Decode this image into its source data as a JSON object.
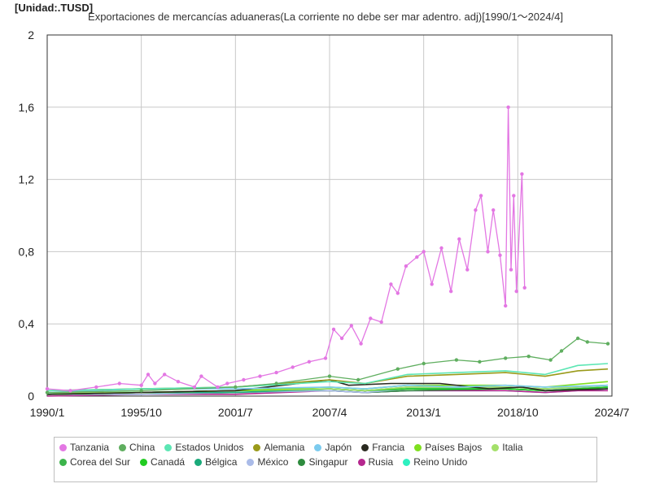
{
  "unit_label": "[Unidad:.TUSD]",
  "chart_data": {
    "type": "line",
    "title": "Exportaciones de mercancías aduaneras(La corriente no debe ser mar adentro. adj)[1990/1～2024/4]",
    "xlabel": "",
    "ylabel": "",
    "ylim": [
      0,
      2
    ],
    "xlim": [
      "1990-01",
      "2024-07"
    ],
    "y_ticks": [
      "0",
      "0,4",
      "0,8",
      "1,2",
      "1,6",
      "2"
    ],
    "y_tick_values": [
      0,
      0.4,
      0.8,
      1.2,
      1.6,
      2
    ],
    "x_ticks": [
      "1990/1",
      "1995/10",
      "2001/7",
      "2007/4",
      "2013/1",
      "2018/10",
      "2024/7"
    ],
    "grid": true,
    "legend_position": "bottom",
    "series": [
      {
        "name": "Tanzania",
        "color": "#e377e3",
        "markers": true,
        "points": [
          [
            "1990-01",
            0.04
          ],
          [
            "1991-06",
            0.03
          ],
          [
            "1993-01",
            0.05
          ],
          [
            "1994-06",
            0.07
          ],
          [
            "1995-10",
            0.06
          ],
          [
            "1996-03",
            0.12
          ],
          [
            "1996-08",
            0.07
          ],
          [
            "1997-03",
            0.12
          ],
          [
            "1998-01",
            0.08
          ],
          [
            "1999-01",
            0.05
          ],
          [
            "1999-06",
            0.11
          ],
          [
            "2000-06",
            0.05
          ],
          [
            "2001-01",
            0.07
          ],
          [
            "2002-01",
            0.09
          ],
          [
            "2003-01",
            0.11
          ],
          [
            "2004-01",
            0.13
          ],
          [
            "2005-01",
            0.16
          ],
          [
            "2006-01",
            0.19
          ],
          [
            "2007-01",
            0.21
          ],
          [
            "2007-07",
            0.37
          ],
          [
            "2008-01",
            0.32
          ],
          [
            "2008-08",
            0.39
          ],
          [
            "2009-03",
            0.29
          ],
          [
            "2009-10",
            0.43
          ],
          [
            "2010-06",
            0.41
          ],
          [
            "2011-01",
            0.62
          ],
          [
            "2011-06",
            0.57
          ],
          [
            "2011-12",
            0.72
          ],
          [
            "2012-08",
            0.77
          ],
          [
            "2013-01",
            0.8
          ],
          [
            "2013-07",
            0.62
          ],
          [
            "2014-02",
            0.82
          ],
          [
            "2014-09",
            0.58
          ],
          [
            "2015-03",
            0.87
          ],
          [
            "2015-09",
            0.7
          ],
          [
            "2016-03",
            1.03
          ],
          [
            "2016-07",
            1.11
          ],
          [
            "2016-12",
            0.8
          ],
          [
            "2017-04",
            1.03
          ],
          [
            "2017-09",
            0.78
          ],
          [
            "2018-01",
            0.5
          ],
          [
            "2018-03",
            1.6
          ],
          [
            "2018-05",
            0.7
          ],
          [
            "2018-07",
            1.11
          ],
          [
            "2018-09",
            0.58
          ],
          [
            "2019-01",
            1.23
          ],
          [
            "2019-03",
            0.6
          ]
        ]
      },
      {
        "name": "China",
        "color": "#5fae5f",
        "markers": true,
        "points": [
          [
            "1990-01",
            0.02
          ],
          [
            "1995-10",
            0.03
          ],
          [
            "2001-07",
            0.05
          ],
          [
            "2004-01",
            0.07
          ],
          [
            "2007-04",
            0.11
          ],
          [
            "2009-01",
            0.09
          ],
          [
            "2011-06",
            0.15
          ],
          [
            "2013-01",
            0.18
          ],
          [
            "2015-01",
            0.2
          ],
          [
            "2016-06",
            0.19
          ],
          [
            "2018-01",
            0.21
          ],
          [
            "2019-06",
            0.22
          ],
          [
            "2020-10",
            0.2
          ],
          [
            "2021-06",
            0.25
          ],
          [
            "2022-06",
            0.32
          ],
          [
            "2023-01",
            0.3
          ],
          [
            "2024-04",
            0.29
          ]
        ]
      },
      {
        "name": "Estados Unidos",
        "color": "#5ce6b4",
        "markers": false,
        "points": [
          [
            "1990-01",
            0.03
          ],
          [
            "1995-10",
            0.04
          ],
          [
            "2001-07",
            0.05
          ],
          [
            "2007-04",
            0.08
          ],
          [
            "2009-06",
            0.07
          ],
          [
            "2012-01",
            0.12
          ],
          [
            "2015-01",
            0.13
          ],
          [
            "2018-01",
            0.14
          ],
          [
            "2020-06",
            0.12
          ],
          [
            "2022-06",
            0.17
          ],
          [
            "2024-04",
            0.18
          ]
        ]
      },
      {
        "name": "Alemania",
        "color": "#9a9a1a",
        "markers": false,
        "points": [
          [
            "1990-01",
            0.03
          ],
          [
            "1995-10",
            0.04
          ],
          [
            "2001-07",
            0.05
          ],
          [
            "2007-04",
            0.09
          ],
          [
            "2009-06",
            0.07
          ],
          [
            "2012-01",
            0.11
          ],
          [
            "2015-01",
            0.12
          ],
          [
            "2018-01",
            0.13
          ],
          [
            "2020-06",
            0.11
          ],
          [
            "2022-06",
            0.14
          ],
          [
            "2024-04",
            0.15
          ]
        ]
      },
      {
        "name": "Japón",
        "color": "#7ccbee",
        "markers": false,
        "points": [
          [
            "1990-01",
            0.02
          ],
          [
            "1995-10",
            0.04
          ],
          [
            "2001-07",
            0.04
          ],
          [
            "2007-04",
            0.05
          ],
          [
            "2009-06",
            0.04
          ],
          [
            "2012-01",
            0.06
          ],
          [
            "2015-01",
            0.05
          ],
          [
            "2018-01",
            0.06
          ],
          [
            "2020-06",
            0.05
          ],
          [
            "2024-04",
            0.06
          ]
        ]
      },
      {
        "name": "Francia",
        "color": "#2a2a20",
        "markers": false,
        "points": [
          [
            "1990-01",
            0.01
          ],
          [
            "1995-10",
            0.02
          ],
          [
            "2001-07",
            0.03
          ],
          [
            "2007-04",
            0.09
          ],
          [
            "2008-06",
            0.06
          ],
          [
            "2011-01",
            0.07
          ],
          [
            "2014-01",
            0.07
          ],
          [
            "2017-01",
            0.04
          ],
          [
            "2019-01",
            0.05
          ],
          [
            "2020-06",
            0.03
          ],
          [
            "2024-04",
            0.04
          ]
        ]
      },
      {
        "name": "Países Bajos",
        "color": "#7fe01f",
        "markers": false,
        "points": [
          [
            "1990-01",
            0.01
          ],
          [
            "1995-10",
            0.02
          ],
          [
            "2001-07",
            0.03
          ],
          [
            "2007-04",
            0.05
          ],
          [
            "2009-06",
            0.04
          ],
          [
            "2012-01",
            0.06
          ],
          [
            "2015-01",
            0.06
          ],
          [
            "2018-01",
            0.06
          ],
          [
            "2020-06",
            0.05
          ],
          [
            "2024-04",
            0.08
          ]
        ]
      },
      {
        "name": "Italia",
        "color": "#a4e06a",
        "markers": false,
        "points": [
          [
            "1990-01",
            0.02
          ],
          [
            "1995-10",
            0.02
          ],
          [
            "2001-07",
            0.03
          ],
          [
            "2007-04",
            0.04
          ],
          [
            "2009-06",
            0.03
          ],
          [
            "2012-01",
            0.05
          ],
          [
            "2018-01",
            0.05
          ],
          [
            "2020-06",
            0.04
          ],
          [
            "2024-04",
            0.06
          ]
        ]
      },
      {
        "name": "Corea del Sur",
        "color": "#3cb44b",
        "markers": false,
        "points": [
          [
            "1990-01",
            0.01
          ],
          [
            "1995-10",
            0.02
          ],
          [
            "2001-07",
            0.03
          ],
          [
            "2007-04",
            0.04
          ],
          [
            "2009-06",
            0.03
          ],
          [
            "2012-01",
            0.05
          ],
          [
            "2018-01",
            0.05
          ],
          [
            "2020-06",
            0.04
          ],
          [
            "2024-04",
            0.06
          ]
        ]
      },
      {
        "name": "Canadá",
        "color": "#22cc22",
        "markers": false,
        "points": [
          [
            "1990-01",
            0.01
          ],
          [
            "1995-10",
            0.02
          ],
          [
            "2001-07",
            0.03
          ],
          [
            "2007-04",
            0.04
          ],
          [
            "2009-06",
            0.03
          ],
          [
            "2012-01",
            0.04
          ],
          [
            "2018-01",
            0.04
          ],
          [
            "2020-06",
            0.03
          ],
          [
            "2024-04",
            0.05
          ]
        ]
      },
      {
        "name": "Bélgica",
        "color": "#1aaa7a",
        "markers": false,
        "points": [
          [
            "1990-01",
            0.01
          ],
          [
            "1995-10",
            0.02
          ],
          [
            "2001-07",
            0.02
          ],
          [
            "2007-04",
            0.04
          ],
          [
            "2009-06",
            0.03
          ],
          [
            "2012-01",
            0.04
          ],
          [
            "2018-01",
            0.04
          ],
          [
            "2020-06",
            0.03
          ],
          [
            "2024-04",
            0.05
          ]
        ]
      },
      {
        "name": "México",
        "color": "#aabbe8",
        "markers": false,
        "points": [
          [
            "1990-01",
            0.01
          ],
          [
            "1995-10",
            0.01
          ],
          [
            "2001-07",
            0.02
          ],
          [
            "2007-04",
            0.03
          ],
          [
            "2009-06",
            0.02
          ],
          [
            "2012-01",
            0.04
          ],
          [
            "2018-01",
            0.05
          ],
          [
            "2020-06",
            0.04
          ],
          [
            "2024-04",
            0.05
          ]
        ]
      },
      {
        "name": "Singapur",
        "color": "#2e8b3e",
        "markers": false,
        "points": [
          [
            "1990-01",
            0.01
          ],
          [
            "1995-10",
            0.01
          ],
          [
            "2001-07",
            0.02
          ],
          [
            "2007-04",
            0.03
          ],
          [
            "2009-06",
            0.02
          ],
          [
            "2012-01",
            0.03
          ],
          [
            "2018-01",
            0.04
          ],
          [
            "2020-06",
            0.03
          ],
          [
            "2024-04",
            0.04
          ]
        ]
      },
      {
        "name": "Rusia",
        "color": "#b5278e",
        "markers": false,
        "points": [
          [
            "1990-01",
            0.0
          ],
          [
            "1995-10",
            0.01
          ],
          [
            "2001-07",
            0.01
          ],
          [
            "2007-04",
            0.03
          ],
          [
            "2009-06",
            0.02
          ],
          [
            "2012-01",
            0.03
          ],
          [
            "2018-01",
            0.03
          ],
          [
            "2020-06",
            0.02
          ],
          [
            "2022-06",
            0.03
          ],
          [
            "2024-04",
            0.03
          ]
        ]
      },
      {
        "name": "Reino Unido",
        "color": "#2ef0c0",
        "markers": false,
        "points": [
          [
            "1990-01",
            0.02
          ],
          [
            "1995-10",
            0.02
          ],
          [
            "2001-07",
            0.03
          ],
          [
            "2007-04",
            0.03
          ],
          [
            "2009-06",
            0.02
          ],
          [
            "2012-01",
            0.03
          ],
          [
            "2018-01",
            0.03
          ],
          [
            "2020-06",
            0.02
          ],
          [
            "2024-04",
            0.04
          ]
        ]
      }
    ]
  }
}
